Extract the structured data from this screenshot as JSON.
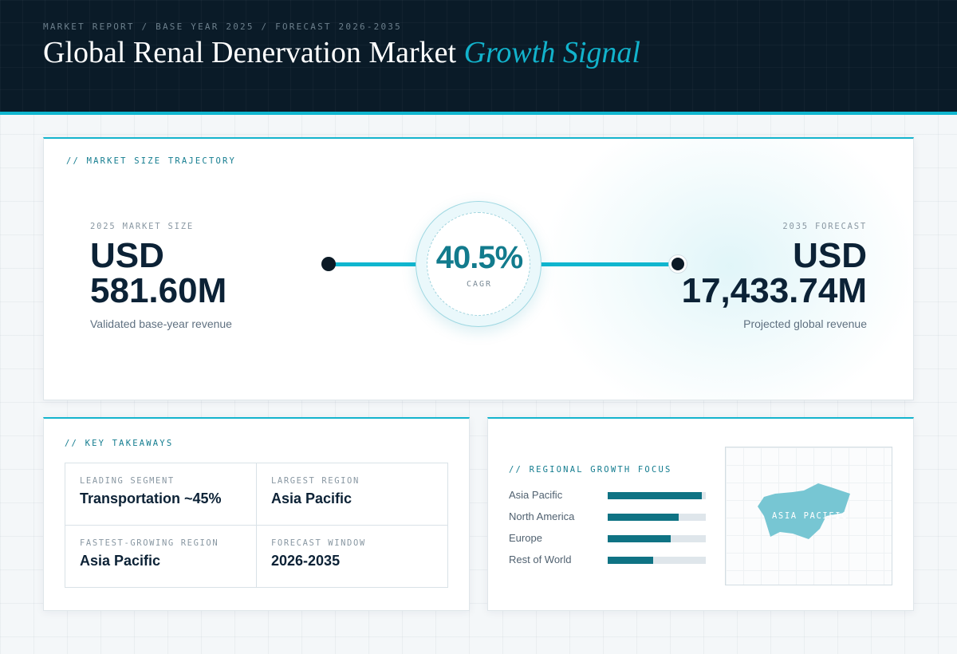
{
  "header": {
    "eyebrow": "MARKET REPORT / BASE YEAR 2025 / FORECAST 2026-2035",
    "title_main": "Global Renal Denervation Market",
    "title_accent": "Growth Signal"
  },
  "trajectory": {
    "section_label": "// MARKET SIZE TRAJECTORY",
    "base": {
      "label": "2025 MARKET SIZE",
      "currency": "USD",
      "value": "581.60M",
      "sub": "Validated base-year revenue"
    },
    "cagr": {
      "value": "40.5%",
      "label": "CAGR"
    },
    "forecast": {
      "label": "2035 FORECAST",
      "currency": "USD",
      "value": "17,433.74M",
      "sub": "Projected global revenue"
    }
  },
  "takeaways": {
    "section_label": "// KEY TAKEAWAYS",
    "cells": [
      {
        "label": "LEADING SEGMENT",
        "value": "Transportation ~45%"
      },
      {
        "label": "LARGEST REGION",
        "value": "Asia Pacific"
      },
      {
        "label": "FASTEST-GROWING REGION",
        "value": "Asia Pacific"
      },
      {
        "label": "FORECAST WINDOW",
        "value": "2026-2035"
      }
    ]
  },
  "regional": {
    "section_label": "// REGIONAL GROWTH FOCUS",
    "bars": [
      {
        "name": "Asia Pacific",
        "value": 0.96
      },
      {
        "name": "North America",
        "value": 0.72
      },
      {
        "name": "Europe",
        "value": 0.64
      },
      {
        "name": "Rest of World",
        "value": 0.46
      }
    ],
    "map_label": "ASIA PACIFIC"
  },
  "colors": {
    "accent": "#14b4cd",
    "bar_fill": "#0f7384",
    "header_bg": "#0a1b28"
  }
}
